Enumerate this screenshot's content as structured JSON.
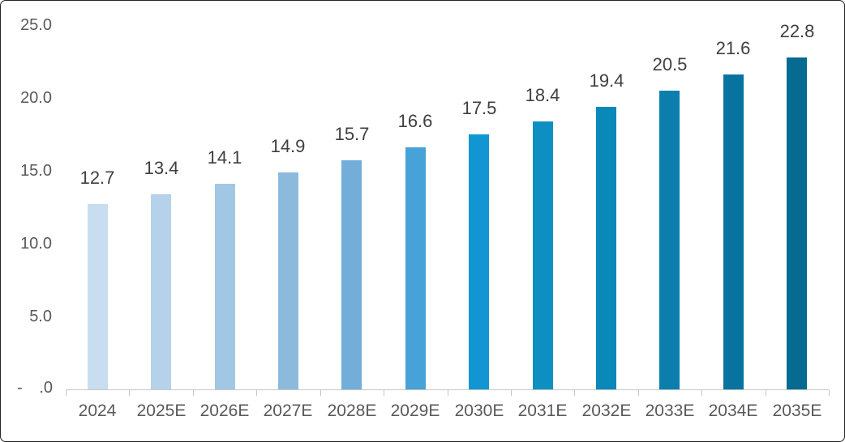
{
  "chart_data": {
    "type": "bar",
    "title": "",
    "categories": [
      "2024",
      "2025E",
      "2026E",
      "2027E",
      "2028E",
      "2029E",
      "2030E",
      "2031E",
      "2032E",
      "2033E",
      "2034E",
      "2035E"
    ],
    "values": [
      12.7,
      13.4,
      14.1,
      14.9,
      15.7,
      16.6,
      17.5,
      18.4,
      19.4,
      20.5,
      21.6,
      22.8
    ],
    "data_labels": [
      "12.7",
      "13.4",
      "14.1",
      "14.9",
      "15.7",
      "16.6",
      "17.5",
      "18.4",
      "19.4",
      "20.5",
      "21.6",
      "22.8"
    ],
    "bar_colors": [
      "#c9ddf0",
      "#b5d2ea",
      "#a1c7e4",
      "#8cbadd",
      "#72aed9",
      "#47a2d8",
      "#1295d3",
      "#0e8fc3",
      "#0a88ba",
      "#0b7ead",
      "#09739f",
      "#076a91"
    ],
    "xlabel": "",
    "ylabel": "",
    "ylim": [
      0,
      25
    ],
    "y_tick_labels": [
      "25.0",
      "20.0",
      "15.0",
      "10.0",
      "5.0"
    ],
    "zero_tick": {
      "dash": "-",
      "decimal": ".0"
    },
    "grid": false,
    "legend": false
  },
  "style": {
    "axis_color": "#c6c6c6",
    "axis_label_color": "#595959",
    "data_label_color": "#3f3f3f",
    "background": "#ffffff",
    "border_color": "#242424"
  }
}
